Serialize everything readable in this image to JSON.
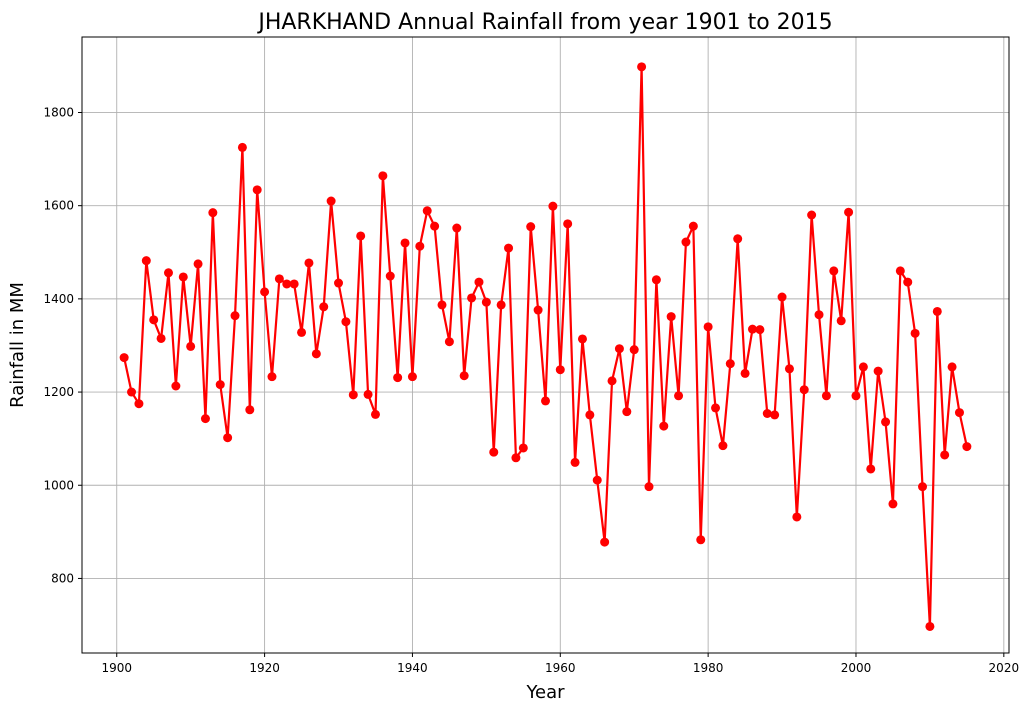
{
  "chart_data": {
    "type": "line",
    "title": "JHARKHAND Annual Rainfall from year 1901 to 2015",
    "xlabel": "Year",
    "ylabel": "Rainfall in MM",
    "xlim": [
      1895.3,
      2020.7
    ],
    "ylim": [
      640,
      1962
    ],
    "xticks": [
      1900,
      1920,
      1940,
      1960,
      1980,
      2000,
      2020
    ],
    "yticks": [
      800,
      1000,
      1200,
      1400,
      1600,
      1800
    ],
    "grid": true,
    "color": "#ff0000",
    "marker": "circle",
    "series": [
      {
        "x": [
          1901,
          1902,
          1903,
          1904,
          1905,
          1906,
          1907,
          1908,
          1909,
          1910,
          1911,
          1912,
          1913,
          1914,
          1915,
          1916,
          1917,
          1918,
          1919,
          1920,
          1921,
          1922,
          1923,
          1924,
          1925,
          1926,
          1927,
          1928,
          1929,
          1930,
          1931,
          1932,
          1933,
          1934,
          1935,
          1936,
          1937,
          1938,
          1939,
          1940,
          1941,
          1942,
          1943,
          1944,
          1945,
          1946,
          1947,
          1948,
          1949,
          1950,
          1951,
          1952,
          1953,
          1954,
          1955,
          1956,
          1957,
          1958,
          1959,
          1960,
          1961,
          1962,
          1963,
          1964,
          1965,
          1966,
          1967,
          1968,
          1969,
          1970,
          1971,
          1972,
          1973,
          1974,
          1975,
          1976,
          1977,
          1978,
          1979,
          1980,
          1981,
          1982,
          1983,
          1984,
          1985,
          1986,
          1987,
          1988,
          1989,
          1990,
          1991,
          1992,
          1993,
          1994,
          1995,
          1996,
          1997,
          1998,
          1999,
          2000,
          2001,
          2002,
          2003,
          2004,
          2005,
          2006,
          2007,
          2008,
          2009,
          2010,
          2011,
          2012,
          2013,
          2014,
          2015
        ],
        "values": [
          1274,
          1200,
          1175,
          1482,
          1355,
          1315,
          1456,
          1213,
          1447,
          1298,
          1475,
          1143,
          1585,
          1216,
          1102,
          1364,
          1725,
          1162,
          1634,
          1415,
          1233,
          1443,
          1432,
          1432,
          1328,
          1477,
          1282,
          1383,
          1610,
          1434,
          1351,
          1194,
          1535,
          1195,
          1152,
          1664,
          1449,
          1231,
          1520,
          1233,
          1513,
          1589,
          1556,
          1387,
          1308,
          1552,
          1235,
          1402,
          1436,
          1393,
          1071,
          1387,
          1509,
          1059,
          1080,
          1555,
          1376,
          1181,
          1599,
          1248,
          1561,
          1049,
          1314,
          1151,
          1011,
          878,
          1224,
          1293,
          1158,
          1291,
          1898,
          997,
          1441,
          1127,
          1362,
          1192,
          1522,
          1556,
          883,
          1340,
          1166,
          1085,
          1261,
          1529,
          1240,
          1335,
          1334,
          1154,
          1151,
          1404,
          1250,
          932,
          1205,
          1580,
          1366,
          1192,
          1460,
          1353,
          1586,
          1192,
          1254,
          1035,
          1245,
          1136,
          960,
          1460,
          1436,
          1326,
          997,
          697,
          1373,
          1065,
          1254,
          1156,
          1083
        ]
      }
    ]
  }
}
